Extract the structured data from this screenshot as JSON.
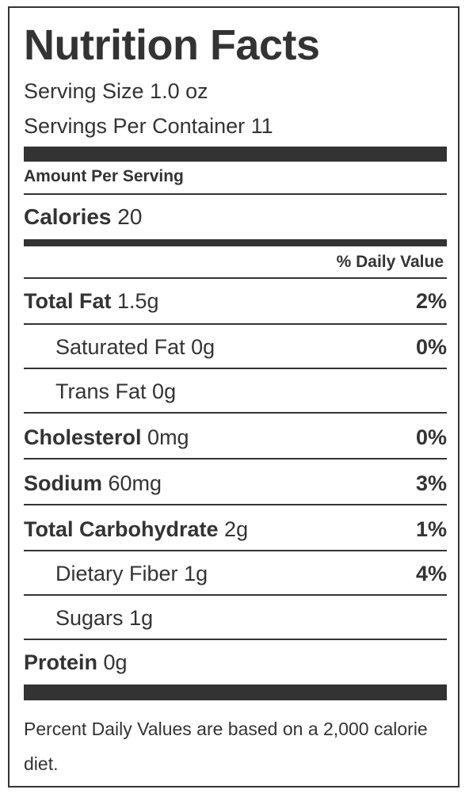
{
  "label": {
    "title": "Nutrition Facts",
    "serving_size": "Serving Size 1.0 oz",
    "servings_per_container": "Servings Per Container 11",
    "amount_per_serving": "Amount Per Serving",
    "calories": {
      "name": "Calories",
      "value": "20"
    },
    "daily_value_header": "% Daily Value",
    "nutrients": [
      {
        "name": "Total Fat",
        "amount": "1.5g",
        "dv": "2%"
      },
      {
        "name": "Saturated Fat",
        "amount": "0g",
        "dv": "0%"
      },
      {
        "name": "Trans Fat",
        "amount": "0g",
        "dv": ""
      },
      {
        "name": "Cholesterol",
        "amount": "0mg",
        "dv": "0%"
      },
      {
        "name": "Sodium",
        "amount": "60mg",
        "dv": "3%"
      },
      {
        "name": "Total Carbohydrate",
        "amount": "2g",
        "dv": "1%"
      },
      {
        "name": "Dietary Fiber",
        "amount": "1g",
        "dv": "4%"
      },
      {
        "name": "Sugars",
        "amount": "1g",
        "dv": ""
      },
      {
        "name": "Protein",
        "amount": "0g",
        "dv": ""
      }
    ],
    "footnote": "Percent Daily Values are based on a 2,000 calorie diet."
  },
  "colors": {
    "text": "#333333",
    "rule": "#333333",
    "background": "#ffffff"
  }
}
